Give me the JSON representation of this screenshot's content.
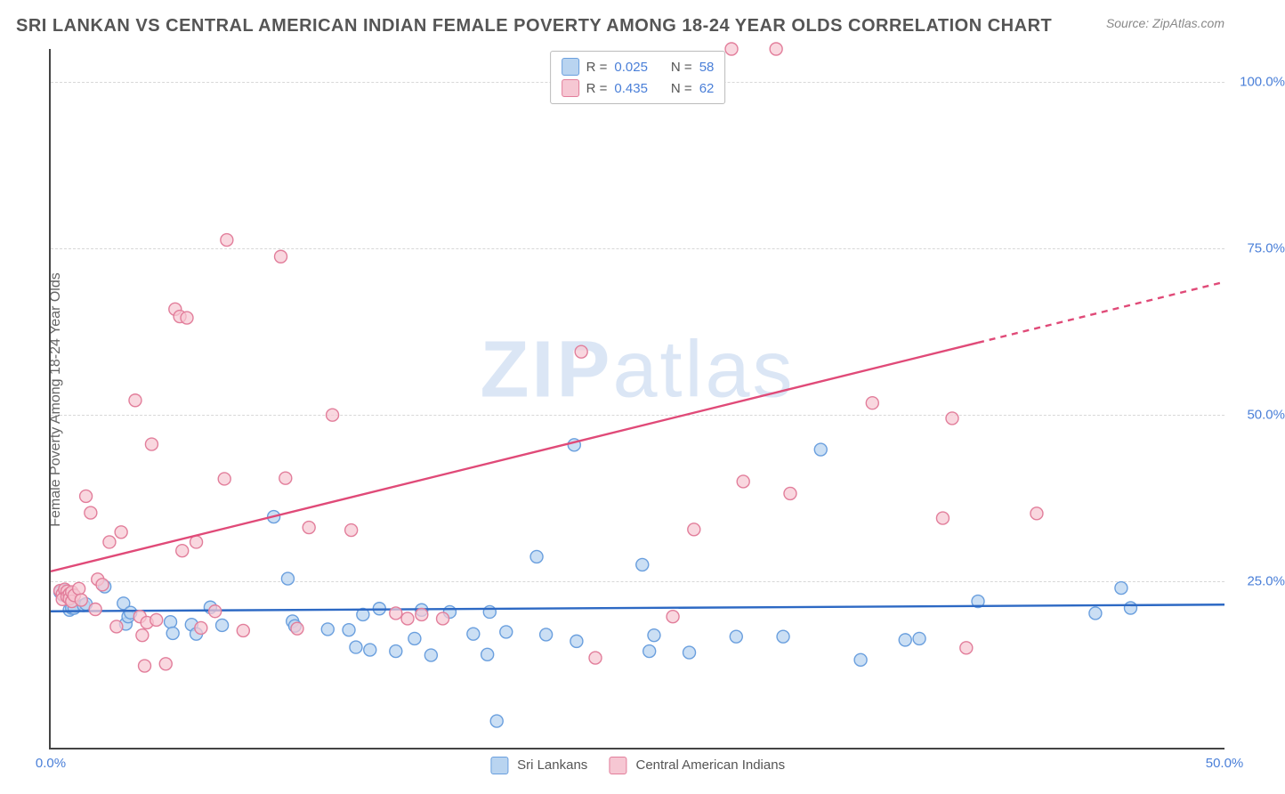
{
  "header": {
    "title": "SRI LANKAN VS CENTRAL AMERICAN INDIAN FEMALE POVERTY AMONG 18-24 YEAR OLDS CORRELATION CHART",
    "source": "Source: ZipAtlas.com"
  },
  "watermark": {
    "bold": "ZIP",
    "thin": "atlas"
  },
  "chart": {
    "type": "scatter",
    "ylabel": "Female Poverty Among 18-24 Year Olds",
    "xlim": [
      0,
      50
    ],
    "ylim": [
      0,
      105
    ],
    "xticks": [
      0,
      50
    ],
    "xtick_labels": [
      "0.0%",
      "50.0%"
    ],
    "yticks": [
      25,
      50,
      75,
      100
    ],
    "ytick_labels": [
      "25.0%",
      "50.0%",
      "75.0%",
      "100.0%"
    ],
    "grid_color": "#d8d8d8",
    "axis_color": "#444444",
    "background_color": "#ffffff",
    "tick_color": "#4a7fd8",
    "label_color": "#666666",
    "series": [
      {
        "name": "Sri Lankans",
        "fill": "#b9d4f0",
        "stroke": "#6a9fde",
        "opacity": 0.75,
        "R": "0.025",
        "N": "58",
        "marker_radius": 7,
        "trendline": {
          "y_at_x0": 20.5,
          "y_at_xmax": 21.5,
          "color": "#2d69c4",
          "width": 2.4
        },
        "points": [
          [
            0.4,
            23.4
          ],
          [
            0.5,
            23.0
          ],
          [
            0.6,
            23.6
          ],
          [
            0.7,
            22.9
          ],
          [
            0.8,
            20.7
          ],
          [
            0.9,
            21.0
          ],
          [
            1.0,
            21.0
          ],
          [
            1.4,
            21.4
          ],
          [
            1.5,
            21.6
          ],
          [
            2.3,
            24.2
          ],
          [
            3.1,
            21.7
          ],
          [
            3.2,
            18.6
          ],
          [
            3.3,
            19.7
          ],
          [
            3.4,
            20.3
          ],
          [
            5.1,
            18.9
          ],
          [
            5.2,
            17.2
          ],
          [
            6.0,
            18.5
          ],
          [
            6.2,
            17.1
          ],
          [
            6.8,
            21.1
          ],
          [
            7.3,
            18.4
          ],
          [
            9.5,
            34.7
          ],
          [
            10.1,
            25.4
          ],
          [
            10.3,
            19.0
          ],
          [
            10.4,
            18.3
          ],
          [
            11.8,
            17.8
          ],
          [
            12.7,
            17.7
          ],
          [
            13.0,
            15.1
          ],
          [
            13.3,
            20.0
          ],
          [
            13.6,
            14.7
          ],
          [
            14.0,
            20.9
          ],
          [
            14.7,
            14.5
          ],
          [
            15.5,
            16.4
          ],
          [
            15.8,
            20.7
          ],
          [
            16.2,
            13.9
          ],
          [
            17.0,
            20.4
          ],
          [
            18.0,
            17.1
          ],
          [
            18.6,
            14.0
          ],
          [
            18.7,
            20.4
          ],
          [
            19.0,
            4.0
          ],
          [
            19.4,
            17.4
          ],
          [
            20.7,
            28.7
          ],
          [
            21.1,
            17.0
          ],
          [
            22.3,
            45.5
          ],
          [
            22.4,
            16.0
          ],
          [
            25.2,
            27.5
          ],
          [
            25.5,
            14.5
          ],
          [
            25.7,
            16.9
          ],
          [
            27.2,
            14.3
          ],
          [
            29.2,
            16.7
          ],
          [
            31.2,
            16.7
          ],
          [
            32.8,
            44.8
          ],
          [
            34.5,
            13.2
          ],
          [
            36.4,
            16.2
          ],
          [
            37.0,
            16.4
          ],
          [
            39.5,
            22.0
          ],
          [
            44.5,
            20.2
          ],
          [
            45.6,
            24.0
          ],
          [
            46.0,
            21.0
          ]
        ]
      },
      {
        "name": "Central American Indians",
        "fill": "#f6c7d3",
        "stroke": "#e27e9b",
        "opacity": 0.72,
        "R": "0.435",
        "N": "62",
        "marker_radius": 7,
        "trendline": {
          "y_at_x0": 26.5,
          "y_at_xmax": 70.0,
          "color": "#e04a78",
          "width": 2.4,
          "dash_from_x": 39.5
        },
        "points": [
          [
            0.4,
            23.6
          ],
          [
            0.5,
            23.1
          ],
          [
            0.5,
            22.3
          ],
          [
            0.6,
            23.8
          ],
          [
            0.7,
            23.5
          ],
          [
            0.7,
            22.7
          ],
          [
            0.8,
            23.1
          ],
          [
            0.8,
            22.4
          ],
          [
            0.9,
            23.4
          ],
          [
            0.9,
            22.0
          ],
          [
            1.0,
            22.9
          ],
          [
            1.2,
            23.9
          ],
          [
            1.3,
            22.2
          ],
          [
            1.5,
            37.8
          ],
          [
            1.7,
            35.3
          ],
          [
            1.9,
            20.8
          ],
          [
            2.0,
            25.3
          ],
          [
            2.2,
            24.5
          ],
          [
            2.5,
            30.9
          ],
          [
            2.8,
            18.2
          ],
          [
            3.0,
            32.4
          ],
          [
            3.6,
            52.2
          ],
          [
            3.8,
            19.7
          ],
          [
            3.9,
            16.9
          ],
          [
            4.0,
            12.3
          ],
          [
            4.1,
            18.8
          ],
          [
            4.3,
            45.6
          ],
          [
            4.5,
            19.2
          ],
          [
            4.9,
            12.6
          ],
          [
            5.3,
            65.9
          ],
          [
            5.5,
            64.8
          ],
          [
            5.6,
            29.6
          ],
          [
            5.8,
            64.6
          ],
          [
            6.2,
            30.9
          ],
          [
            6.4,
            18.0
          ],
          [
            7.0,
            20.5
          ],
          [
            7.4,
            40.4
          ],
          [
            7.5,
            76.3
          ],
          [
            8.2,
            17.6
          ],
          [
            9.8,
            73.8
          ],
          [
            10.0,
            40.5
          ],
          [
            10.5,
            17.9
          ],
          [
            11.0,
            33.1
          ],
          [
            12.0,
            50.0
          ],
          [
            12.8,
            32.7
          ],
          [
            14.7,
            20.2
          ],
          [
            15.2,
            19.4
          ],
          [
            15.8,
            20.0
          ],
          [
            16.7,
            19.4
          ],
          [
            22.6,
            59.5
          ],
          [
            23.2,
            13.5
          ],
          [
            26.5,
            19.7
          ],
          [
            27.4,
            32.8
          ],
          [
            29.0,
            105.0
          ],
          [
            29.5,
            40.0
          ],
          [
            30.9,
            105.0
          ],
          [
            31.5,
            38.2
          ],
          [
            35.0,
            51.8
          ],
          [
            38.0,
            34.5
          ],
          [
            38.4,
            49.5
          ],
          [
            42.0,
            35.2
          ],
          [
            39.0,
            15.0
          ]
        ]
      }
    ],
    "legend_top": {
      "R_label": "R =",
      "N_label": "N ="
    }
  }
}
